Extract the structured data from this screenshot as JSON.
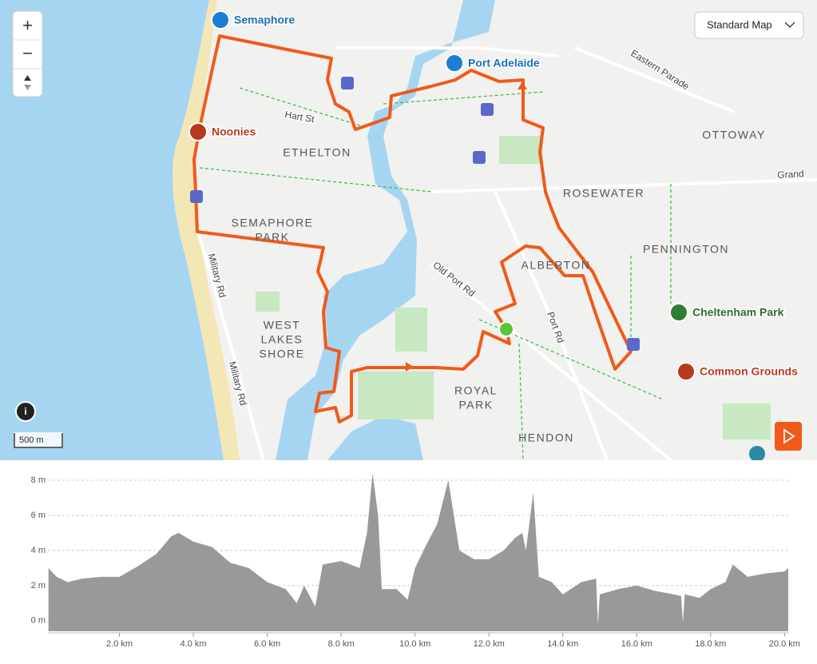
{
  "map": {
    "controls": {
      "zoom_in": "+",
      "zoom_out": "−",
      "map_style": "Standard Map",
      "scale": "500 m"
    },
    "pois": [
      {
        "label": "Semaphore"
      },
      {
        "label": "Port Adelaide"
      },
      {
        "label": "Noonies"
      },
      {
        "label": "Cheltenham Park"
      },
      {
        "label": "Common Grounds"
      }
    ],
    "areas": [
      {
        "lines": [
          "ETHELTON"
        ]
      },
      {
        "lines": [
          "OTTOWAY"
        ]
      },
      {
        "lines": [
          "ROSEWATER"
        ]
      },
      {
        "lines": [
          "SEMAPHORE",
          "PARK"
        ]
      },
      {
        "lines": [
          "PENNINGTON"
        ]
      },
      {
        "lines": [
          "ALBERTON"
        ]
      },
      {
        "lines": [
          "WEST",
          "LAKES",
          "SHORE"
        ]
      },
      {
        "lines": [
          "ROYAL",
          "PARK"
        ]
      },
      {
        "lines": [
          "HENDON"
        ]
      }
    ],
    "roads": [
      "Hart St",
      "Eastern Parade",
      "Grand",
      "Old Port Rd",
      "Port Rd",
      "Military Rd",
      "Military Rd"
    ]
  },
  "chart_data": {
    "type": "area",
    "color": "#999999",
    "x": [
      0.08,
      0.3,
      0.6,
      1.0,
      1.5,
      2.0,
      2.5,
      3.0,
      3.4,
      3.6,
      4.0,
      4.5,
      5.0,
      5.5,
      6.0,
      6.5,
      6.8,
      7.0,
      7.3,
      7.5,
      8.0,
      8.5,
      8.7,
      8.85,
      9.0,
      9.1,
      9.5,
      9.8,
      10.0,
      10.3,
      10.6,
      10.9,
      11.2,
      11.6,
      12.0,
      12.4,
      12.7,
      12.9,
      13.0,
      13.2,
      13.35,
      13.7,
      14.0,
      14.5,
      14.9,
      14.95,
      15.0,
      15.5,
      16.0,
      16.5,
      17.0,
      17.2,
      17.25,
      17.3,
      17.7,
      18.0,
      18.4,
      18.6,
      19.0,
      19.5,
      20.0,
      20.1
    ],
    "values": [
      3.0,
      2.5,
      2.2,
      2.4,
      2.5,
      2.5,
      3.1,
      3.8,
      4.8,
      5.0,
      4.5,
      4.2,
      3.3,
      3.0,
      2.2,
      1.8,
      1.0,
      2.0,
      0.8,
      3.2,
      3.4,
      3.0,
      5.0,
      8.4,
      6.0,
      1.8,
      1.8,
      1.2,
      3.0,
      4.3,
      5.5,
      8.0,
      4.0,
      3.5,
      3.5,
      4.0,
      4.7,
      5.0,
      4.0,
      7.3,
      2.5,
      2.2,
      1.5,
      2.2,
      2.4,
      -0.2,
      1.5,
      1.8,
      2.0,
      1.7,
      1.5,
      1.4,
      -0.1,
      1.5,
      1.3,
      1.8,
      2.2,
      3.2,
      2.5,
      2.7,
      2.8,
      3.0
    ],
    "xlim": [
      0,
      20.1
    ],
    "ylim": [
      -0.6,
      8.5
    ],
    "xticks": [
      {
        "value": 2,
        "label": "2.0 km"
      },
      {
        "value": 4,
        "label": "4.0 km"
      },
      {
        "value": 6,
        "label": "6.0 km"
      },
      {
        "value": 8,
        "label": "8.0 km"
      },
      {
        "value": 10,
        "label": "10.0 km"
      },
      {
        "value": 12,
        "label": "12.0 km"
      },
      {
        "value": 14,
        "label": "14.0 km"
      },
      {
        "value": 16,
        "label": "16.0 km"
      },
      {
        "value": 18,
        "label": "18.0 km"
      },
      {
        "value": 20,
        "label": "20.0 km"
      }
    ],
    "yticks": [
      {
        "value": 0,
        "label": "0 m"
      },
      {
        "value": 2,
        "label": "2 m"
      },
      {
        "value": 4,
        "label": "4 m"
      },
      {
        "value": 6,
        "label": "6 m"
      },
      {
        "value": 8,
        "label": "8 m"
      }
    ],
    "grid": true
  }
}
